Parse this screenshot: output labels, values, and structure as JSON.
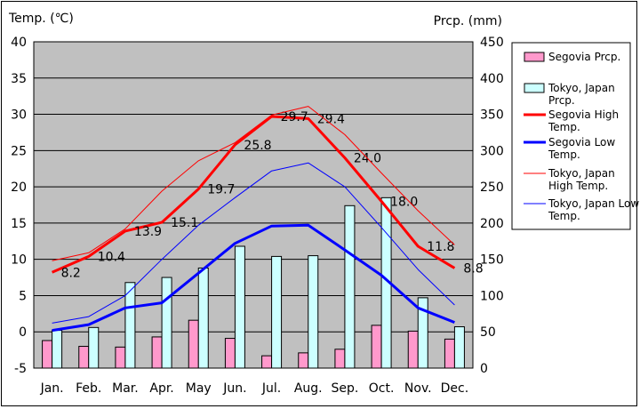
{
  "chart_data": {
    "type": "bar+line",
    "y_left_label": "Temp. (℃)",
    "y_right_label": "Prcp. (mm)",
    "y_left_range": [
      -5,
      40
    ],
    "y_left_ticks": [
      "-5",
      "0",
      "5",
      "10",
      "15",
      "20",
      "25",
      "30",
      "35",
      "40"
    ],
    "y_right_range": [
      0,
      450
    ],
    "y_right_ticks": [
      "0",
      "50",
      "100",
      "150",
      "200",
      "250",
      "300",
      "350",
      "400",
      "450"
    ],
    "categories": [
      "Jan.",
      "Feb.",
      "Mar.",
      "Apr.",
      "May",
      "Jun.",
      "Jul.",
      "Aug.",
      "Sep.",
      "Oct.",
      "Nov.",
      "Dec."
    ],
    "bars": [
      {
        "name": "Segovia Prcp.",
        "color": "#ff99cc",
        "values": [
          38,
          30,
          29,
          43,
          66,
          41,
          17,
          21,
          26,
          59,
          51,
          40
        ]
      },
      {
        "name": "Tokyo, Japan Prcp.",
        "color": "#ccffff",
        "values": [
          52,
          56,
          118,
          125,
          138,
          168,
          154,
          155,
          224,
          235,
          97,
          57
        ]
      }
    ],
    "lines": [
      {
        "name": "Segovia High Temp.",
        "color": "#ff0000",
        "width": 3,
        "values": [
          8.2,
          10.4,
          13.9,
          15.1,
          19.7,
          25.8,
          29.7,
          29.4,
          24.0,
          18.0,
          11.8,
          8.8
        ],
        "labels": [
          "8.2",
          "10.4",
          "13.9",
          "15.1",
          "19.7",
          "25.8",
          "29.7",
          "29.4",
          "24.0",
          "18.0",
          "11.8",
          "8.8"
        ]
      },
      {
        "name": "Segovia Low Temp.",
        "color": "#0000ff",
        "width": 3,
        "values": [
          0.2,
          1.0,
          3.3,
          4.0,
          8.1,
          12.2,
          14.6,
          14.7,
          11.3,
          7.8,
          3.3,
          1.3
        ]
      },
      {
        "name": "Tokyo, Japan High Temp.",
        "color": "#ff0000",
        "width": 1,
        "values": [
          9.8,
          10.9,
          14.2,
          19.4,
          23.6,
          26.1,
          29.9,
          31.1,
          27.2,
          21.9,
          16.7,
          12.0
        ]
      },
      {
        "name": "Tokyo, Japan Low Temp.",
        "color": "#0000ff",
        "width": 1,
        "values": [
          1.2,
          2.1,
          5.0,
          10.0,
          14.7,
          18.5,
          22.2,
          23.3,
          20.0,
          14.4,
          8.6,
          3.7
        ]
      }
    ],
    "legend": [
      {
        "label": "Segovia Prcp.",
        "kind": "bar",
        "color": "#ff99cc"
      },
      {
        "label": "Tokyo, Japan Prcp.",
        "kind": "bar",
        "color": "#ccffff"
      },
      {
        "label": "Segovia High Temp.",
        "kind": "line",
        "color": "#ff0000",
        "width": 3
      },
      {
        "label": "Segovia Low Temp.",
        "kind": "line",
        "color": "#0000ff",
        "width": 3
      },
      {
        "label": "Tokyo, Japan High Temp.",
        "kind": "line",
        "color": "#ff0000",
        "width": 1
      },
      {
        "label": "Tokyo, Japan Low Temp.",
        "kind": "line",
        "color": "#0000ff",
        "width": 1
      }
    ],
    "legend_position": "right",
    "grid": true,
    "plot_background": "#c0c0c0"
  }
}
